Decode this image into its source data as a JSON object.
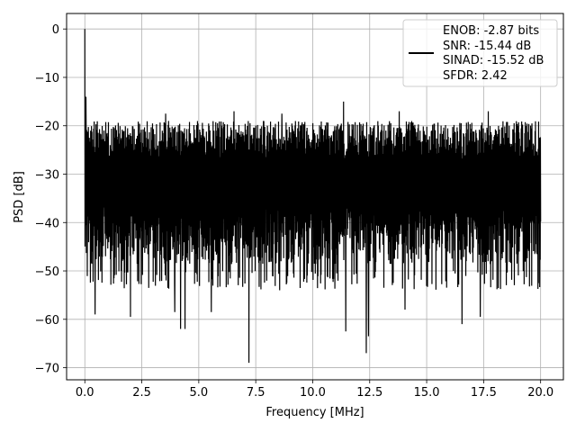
{
  "chart_data": {
    "type": "line",
    "title": "",
    "xlabel": "Frequency [MHz]",
    "ylabel": "PSD [dB]",
    "xlim": [
      -0.8,
      21.0
    ],
    "ylim": [
      -72.5,
      3.2
    ],
    "xticks": [
      0.0,
      2.5,
      5.0,
      7.5,
      10.0,
      12.5,
      15.0,
      17.5,
      20.0
    ],
    "xtick_labels": [
      "0.0",
      "2.5",
      "5.0",
      "7.5",
      "10.0",
      "12.5",
      "15.0",
      "17.5",
      "20.0"
    ],
    "yticks": [
      0,
      -10,
      -20,
      -30,
      -40,
      -50,
      -60,
      -70
    ],
    "ytick_labels": [
      "0",
      "−10",
      "−20",
      "−30",
      "−40",
      "−50",
      "−60",
      "−70"
    ],
    "grid": true,
    "legend_position": "top-right",
    "legend_entries": [
      "ENOB: -2.87 bits",
      "SNR: -15.44 dB",
      "SINAD: -15.52 dB",
      "SFDR: 2.42"
    ],
    "series": [
      {
        "color": "#000000",
        "description": "noisy PSD spectrum; peak at DC then broadband noise floor",
        "peak": {
          "x": 0.0,
          "y": 0.0
        },
        "x_range": [
          0.0,
          20.0
        ],
        "noise_band": {
          "upper": -19.0,
          "lower": -45.0,
          "typical_min": -52.0
        },
        "deep_nulls": [
          {
            "x": 0.45,
            "y": -59.0
          },
          {
            "x": 2.0,
            "y": -59.5
          },
          {
            "x": 3.95,
            "y": -58.5
          },
          {
            "x": 4.2,
            "y": -62.0
          },
          {
            "x": 4.4,
            "y": -62.0
          },
          {
            "x": 5.55,
            "y": -58.5
          },
          {
            "x": 7.2,
            "y": -69.0
          },
          {
            "x": 8.55,
            "y": -54.0
          },
          {
            "x": 11.45,
            "y": -62.5
          },
          {
            "x": 12.35,
            "y": -67.0
          },
          {
            "x": 12.45,
            "y": -63.5
          },
          {
            "x": 14.05,
            "y": -58.0
          },
          {
            "x": 16.55,
            "y": -61.0
          },
          {
            "x": 17.35,
            "y": -59.5
          }
        ],
        "high_spikes": [
          {
            "x": 0.05,
            "y": -14.0
          },
          {
            "x": 3.55,
            "y": -17.5
          },
          {
            "x": 6.55,
            "y": -17.0
          },
          {
            "x": 8.65,
            "y": -17.5
          },
          {
            "x": 11.35,
            "y": -15.0
          },
          {
            "x": 13.8,
            "y": -17.0
          },
          {
            "x": 17.7,
            "y": -17.0
          }
        ]
      }
    ]
  }
}
